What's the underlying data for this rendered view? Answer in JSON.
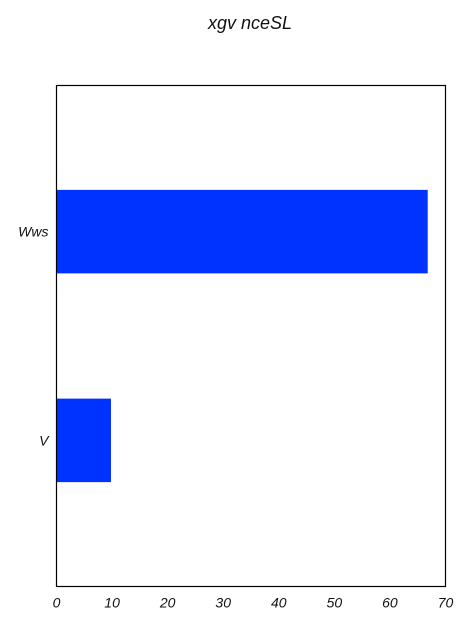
{
  "chart_data": {
    "type": "bar",
    "orientation": "horizontal",
    "title": "xgv nceSL",
    "xlabel": "",
    "ylabel": "",
    "categories": [
      "V",
      "Wws"
    ],
    "values": [
      9.8,
      66.8
    ],
    "xlim": [
      0,
      70
    ],
    "xticks": [
      0,
      10,
      20,
      30,
      40,
      50,
      60,
      70
    ],
    "grid": false,
    "bar_color": "#0033ff"
  }
}
